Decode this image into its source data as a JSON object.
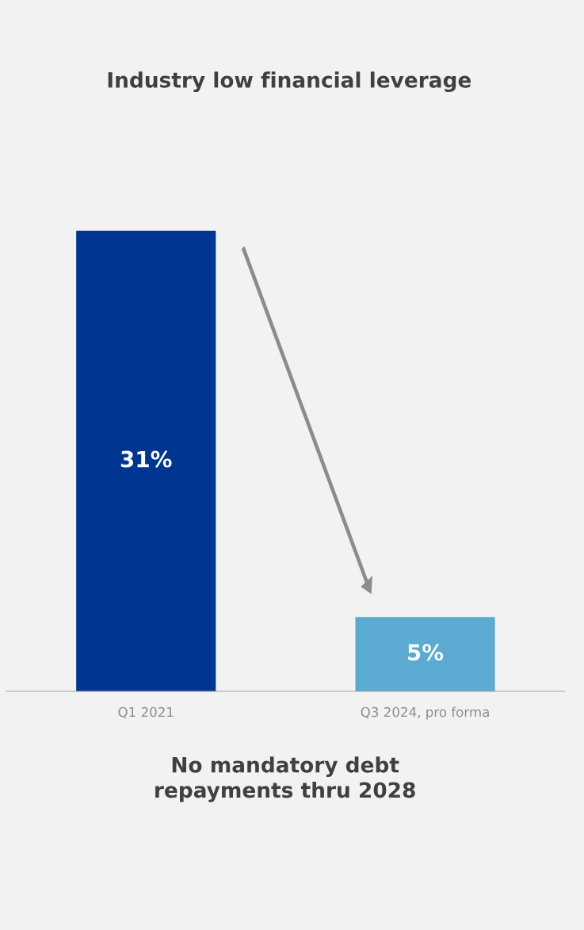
{
  "chart_data": {
    "type": "bar",
    "title": "Industry low financial leverage",
    "categories": [
      "Q1 2021",
      "Q3 2024, pro forma"
    ],
    "values": [
      31,
      5
    ],
    "colors": [
      "#003591",
      "#5aaad2"
    ],
    "data_labels": true,
    "value_labels": [
      "31%",
      "5%"
    ],
    "annotations": [
      "No mandatory debt\nrepayments thru 2028"
    ],
    "grid": false,
    "legend": false
  }
}
